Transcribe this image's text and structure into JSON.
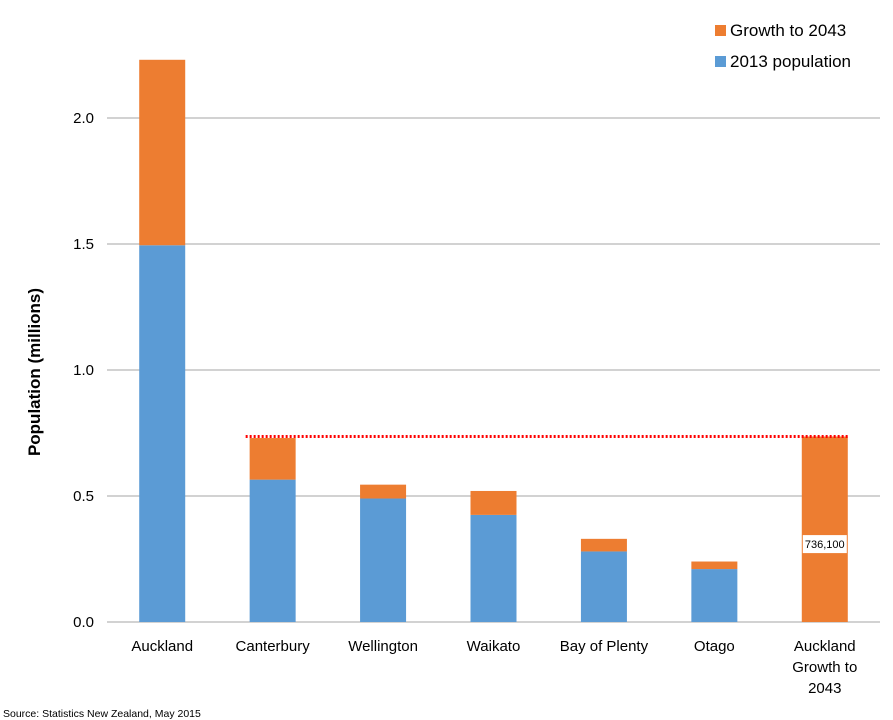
{
  "chart_data": {
    "type": "bar",
    "stacked": true,
    "categories": [
      "Auckland",
      "Canterbury",
      "Wellington",
      "Waikato",
      "Bay of Plenty",
      "Otago",
      "Auckland Growth to 2043"
    ],
    "category_label_lines": [
      [
        "Auckland"
      ],
      [
        "Canterbury"
      ],
      [
        "Wellington"
      ],
      [
        "Waikato"
      ],
      [
        "Bay of Plenty"
      ],
      [
        "Otago"
      ],
      [
        "Auckland",
        "Growth to",
        "2043"
      ]
    ],
    "series": [
      {
        "name": "2013 population",
        "color": "#5b9bd5",
        "values": [
          1.495,
          0.565,
          0.49,
          0.425,
          0.28,
          0.21,
          0
        ]
      },
      {
        "name": "Growth to 2043",
        "color": "#ed7d31",
        "values": [
          0.736,
          0.165,
          0.055,
          0.095,
          0.05,
          0.03,
          0.7361
        ]
      }
    ],
    "ylabel": "Population  (millions)",
    "yticks": [
      "0.0",
      "0.5",
      "1.0",
      "1.5",
      "2.0"
    ],
    "ylim": [
      0,
      2.4
    ],
    "grid": true,
    "legend": {
      "placement": "top-right",
      "order": [
        "Growth to 2043",
        "2013 population"
      ]
    },
    "reference_line": {
      "value": 0.7361,
      "color": "#ff0000",
      "style": "dotted"
    },
    "annotation": {
      "category": "Auckland Growth to 2043",
      "text": "736,100"
    },
    "source": "Source: Statistics New Zealand, May 2015"
  }
}
